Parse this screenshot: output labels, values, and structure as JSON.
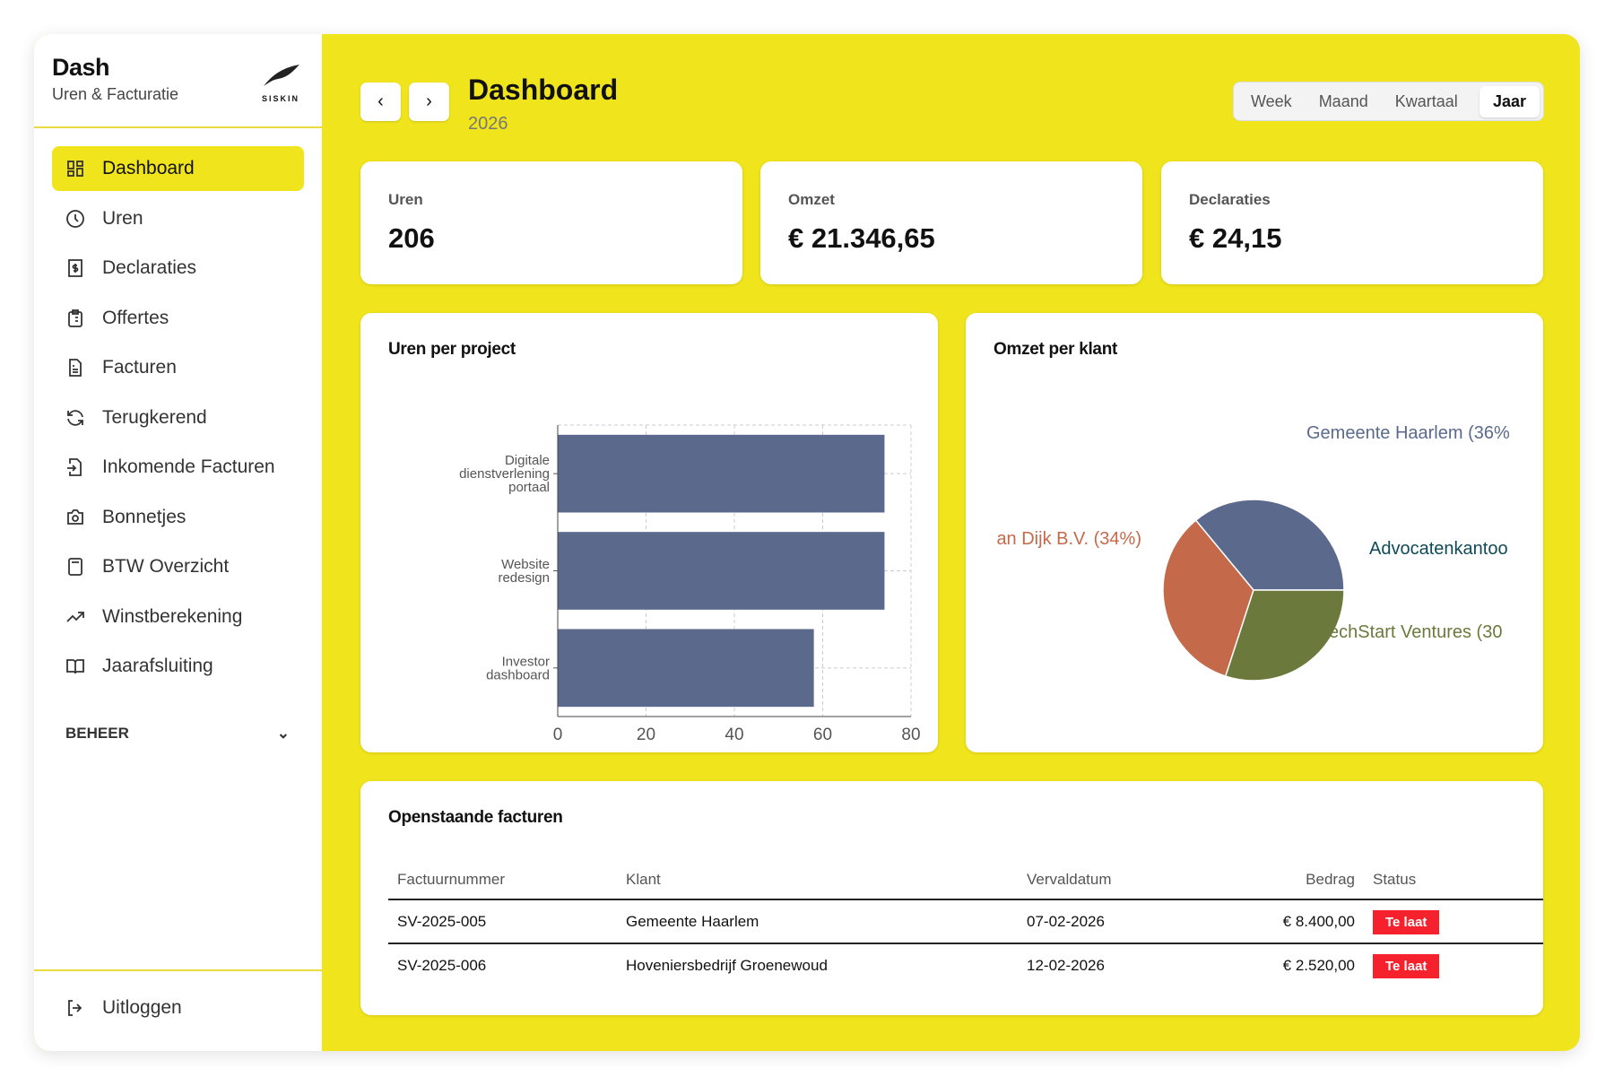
{
  "sidebar": {
    "app_title": "Dash",
    "app_subtitle": "Uren & Facturatie",
    "logo_text": "SISKIN",
    "items": [
      {
        "label": "Dashboard",
        "icon": "grid-icon"
      },
      {
        "label": "Uren",
        "icon": "clock-icon"
      },
      {
        "label": "Declaraties",
        "icon": "receipt-icon"
      },
      {
        "label": "Offertes",
        "icon": "clipboard-icon"
      },
      {
        "label": "Facturen",
        "icon": "file-text-icon"
      },
      {
        "label": "Terugkerend",
        "icon": "refresh-icon"
      },
      {
        "label": "Inkomende Facturen",
        "icon": "file-import-icon"
      },
      {
        "label": "Bonnetjes",
        "icon": "camera-icon"
      },
      {
        "label": "BTW Overzicht",
        "icon": "calculator-icon"
      },
      {
        "label": "Winstberekening",
        "icon": "trending-up-icon"
      },
      {
        "label": "Jaarafsluiting",
        "icon": "book-icon"
      }
    ],
    "section": "BEHEER",
    "logout": "Uitloggen"
  },
  "header": {
    "title": "Dashboard",
    "subtitle": "2026",
    "periods": [
      "Week",
      "Maand",
      "Kwartaal",
      "Jaar"
    ],
    "active_period": "Jaar"
  },
  "stats": [
    {
      "label": "Uren",
      "value": "206"
    },
    {
      "label": "Omzet",
      "value": "€ 21.346,65"
    },
    {
      "label": "Declaraties",
      "value": "€ 24,15"
    }
  ],
  "colors": {
    "accent": "#f0e41c",
    "bar": "#5b6a8c",
    "late": "#f5222d"
  },
  "chart_data": [
    {
      "type": "bar",
      "orientation": "horizontal",
      "title": "Uren per project",
      "categories": [
        "Digitale dienstverlening portaal",
        "Website redesign",
        "Investor dashboard"
      ],
      "values": [
        74,
        74,
        58
      ],
      "xlim": [
        0,
        80
      ],
      "xticks": [
        0,
        20,
        40,
        60,
        80
      ],
      "grid": true
    },
    {
      "type": "pie",
      "title": "Omzet per klant",
      "slices": [
        {
          "label": "Gemeente Haarlem (36%",
          "value": 36,
          "color": "#5b6a8c"
        },
        {
          "label": "an Dijk B.V. (34%)",
          "value": 34,
          "color": "#c4694a"
        },
        {
          "label": "TechStart Ventures (30",
          "value": 30,
          "color": "#6b7a3c"
        },
        {
          "label": "Advocatenkantoo",
          "value": 0,
          "color": "#0f4a55"
        }
      ]
    }
  ],
  "invoices": {
    "title": "Openstaande facturen",
    "columns": [
      "Factuurnummer",
      "Klant",
      "Vervaldatum",
      "Bedrag",
      "Status"
    ],
    "rows": [
      [
        "SV-2025-005",
        "Gemeente Haarlem",
        "07-02-2026",
        "€ 8.400,00",
        "Te laat"
      ],
      [
        "SV-2025-006",
        "Hoveniersbedrijf Groenewoud",
        "12-02-2026",
        "€ 2.520,00",
        "Te laat"
      ]
    ]
  }
}
